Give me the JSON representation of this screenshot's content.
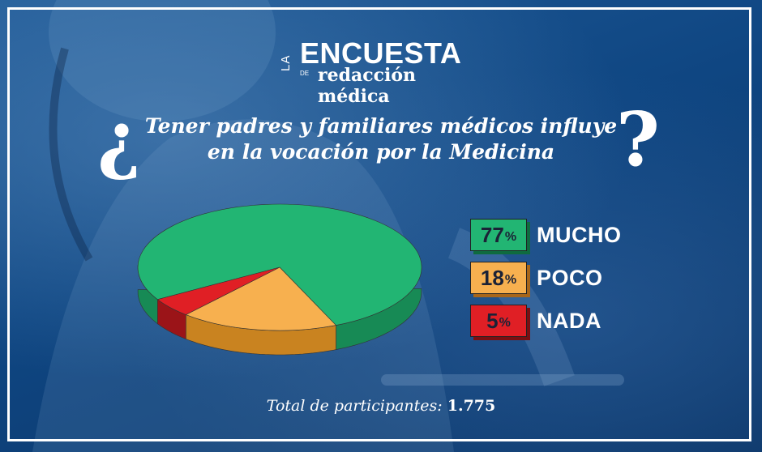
{
  "brand": {
    "la": "LA",
    "encuesta": "ENCUESTA",
    "de": "DE",
    "publication": "redacción médica"
  },
  "question": {
    "open_mark": "¿",
    "line1": "Tener padres y familiares médicos influye",
    "line2": "en la vocación por la Medicina",
    "close_mark": "?"
  },
  "chart_data": {
    "type": "pie",
    "title": "¿Tener padres y familiares médicos influye en la vocación por la Medicina?",
    "slices": [
      {
        "label": "MUCHO",
        "value": 77,
        "display": "77",
        "color": "#22b573",
        "side": "#178a55",
        "badge_shadow": "#0f6b40"
      },
      {
        "label": "POCO",
        "value": 18,
        "display": "18",
        "color": "#f7b04f",
        "side": "#c98320",
        "badge_shadow": "#a8661a"
      },
      {
        "label": "NADA",
        "value": 5,
        "display": "5",
        "color": "#e01f25",
        "side": "#9b1418",
        "badge_shadow": "#7a0f12"
      }
    ],
    "percent_sign": "%",
    "legend_position": "right"
  },
  "footer": {
    "total_label": "Total de participantes: ",
    "total_value": "1.775"
  }
}
